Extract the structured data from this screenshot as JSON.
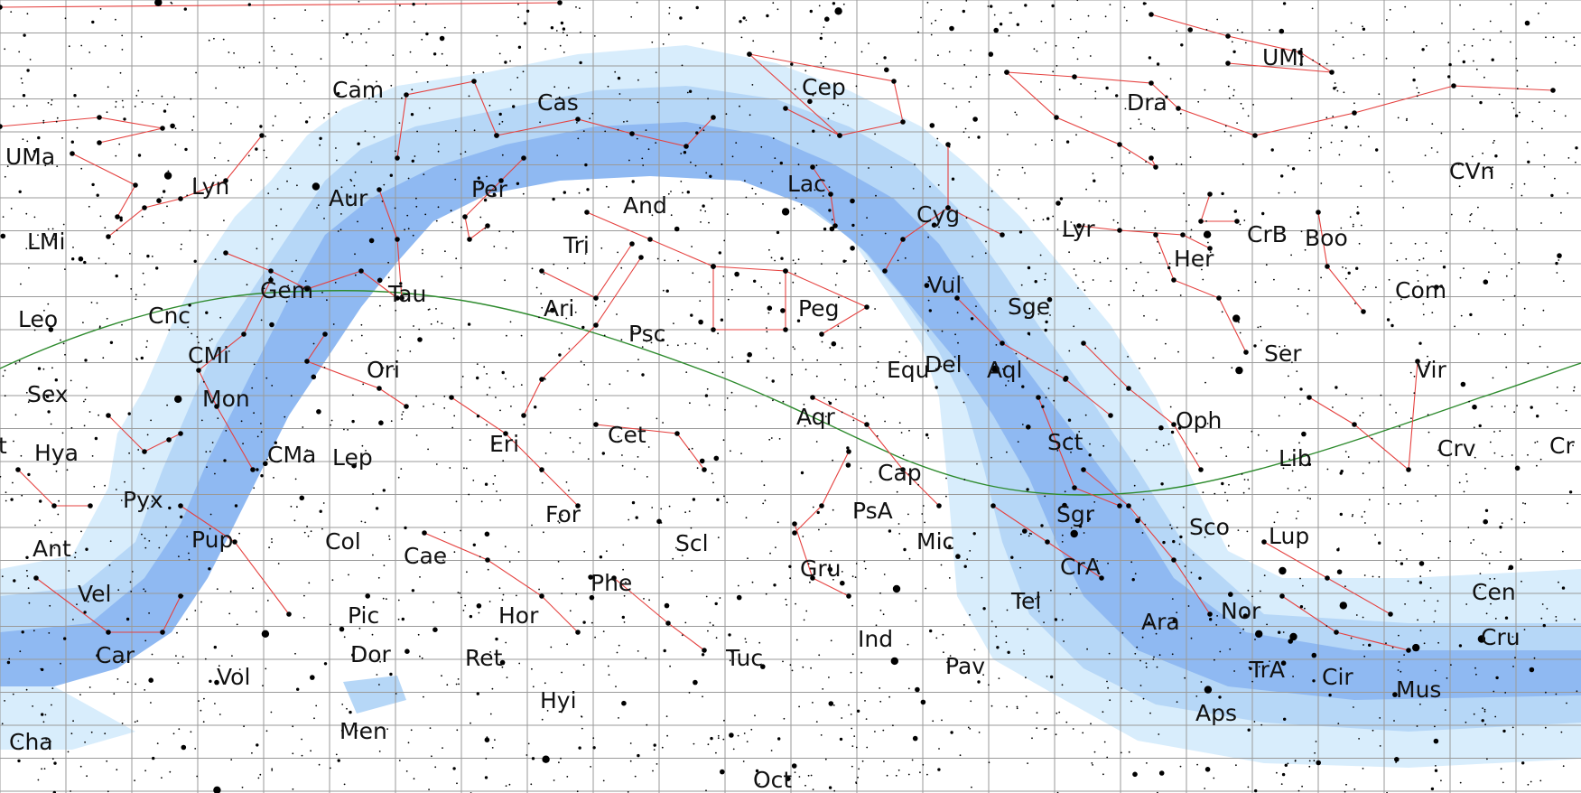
{
  "colors": {
    "background": "#ffffff",
    "grid": "#9a9a9a",
    "milky_way_outer": "#d8edfc",
    "milky_way_mid": "#b6d7f7",
    "milky_way_inner": "#8fb9f2",
    "constellation_lines": "#e5413f",
    "ecliptic": "#2e8b2e",
    "stars": "#000000",
    "label_text": "#111111"
  },
  "constellations": [
    "UMi",
    "Cep",
    "Cam",
    "Cas",
    "Dra",
    "UMa",
    "CVn",
    "Lyn",
    "Lac",
    "Per",
    "And",
    "Aur",
    "Cyg",
    "Lyr",
    "LMi",
    "Tri",
    "CrB",
    "Boo",
    "Her",
    "Gem",
    "Tau",
    "Vul",
    "Com",
    "Leo",
    "Cnc",
    "Ari",
    "Sge",
    "Peg",
    "Psc",
    "Ser",
    "CMi",
    "Ori",
    "Equ",
    "Del",
    "Aql",
    "Vir",
    "Sex",
    "Mon",
    "Aqr",
    "Oph",
    "Cet",
    "Sct",
    "Crv",
    "Cr",
    "Hya",
    "CMa",
    "Lep",
    "Eri",
    "Cap",
    "Lib",
    "Pyx",
    "For",
    "PsA",
    "Sgr",
    "Sco",
    "Pup",
    "Col",
    "Scl",
    "Mic",
    "Lup",
    "Ant",
    "Cae",
    "CrA",
    "Phe",
    "Gru",
    "Vel",
    "Cen",
    "Tel",
    "Pic",
    "Hor",
    "Ara",
    "Nor",
    "Cru",
    "Car",
    "Ind",
    "Dor",
    "Ret",
    "Tuc",
    "Pav",
    "TrA",
    "Cir",
    "Mus",
    "Vol",
    "Hyi",
    "Aps",
    "Men",
    "Cha",
    "Oct",
    "t"
  ]
}
